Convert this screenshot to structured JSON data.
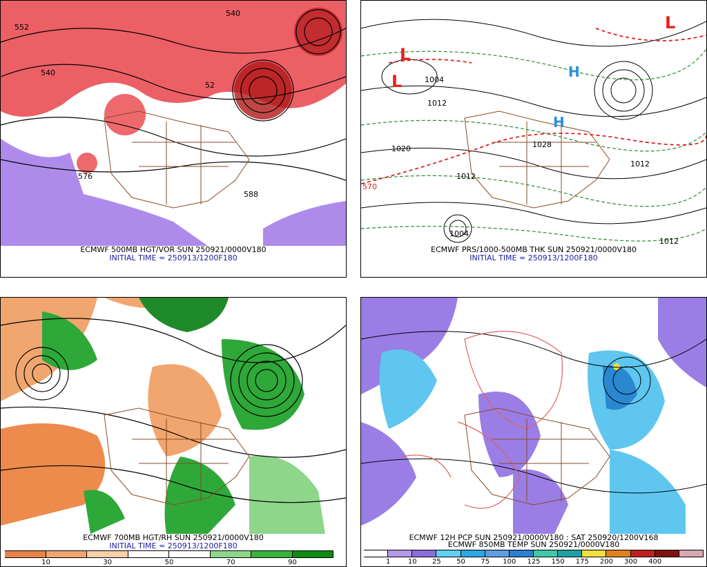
{
  "panels": {
    "top_left": {
      "title": "ECMWF 500MB HGT/VOR SUN 250921/0000V180",
      "initial": "INITIAL TIME = 250913/1200F180",
      "labels": [
        "552",
        "540",
        "540",
        "576",
        "588",
        "52"
      ]
    },
    "top_right": {
      "title": "ECMWF PRS/1000-500MB THK SUN 250921/0000V180",
      "initial": "INITIAL TIME = 250913/1200F180",
      "labels": [
        "1004",
        "1012",
        "1020",
        "1028",
        "1012",
        "1004",
        "570",
        "1012",
        "1012"
      ]
    },
    "bottom_left": {
      "title": "ECMWF 700MB HGT/RH SUN 250921/0000V180",
      "initial": "INITIAL TIME = 250913/1200F180",
      "colorbar_ticks": [
        "10",
        "30",
        "50",
        "70",
        "90"
      ],
      "colorbar_colors": [
        "#e8834a",
        "#f0a66e",
        "#f8cfa8",
        "#ffffff",
        "#ffffff",
        "#8ed68a",
        "#3ab33a",
        "#0f8a14"
      ]
    },
    "bottom_right": {
      "title": "ECMWF 12H PCP SUN 250921/0000V180 : SAT 250920/1200V168",
      "subtitle": "ECMWF 850MB TEMP SUN 250921/0000V180",
      "colorbar_ticks": [
        "1",
        "10",
        "25",
        "50",
        "75",
        "100",
        "125",
        "150",
        "175",
        "200",
        "300",
        "400"
      ],
      "colorbar_colors": [
        "#ffffff",
        "#b49ae6",
        "#8a6ee0",
        "#5fd0f0",
        "#2aa8e8",
        "#5f9fe0",
        "#2e7fd0",
        "#44c7a8",
        "#20a0a0",
        "#f0e040",
        "#e08020",
        "#c02020",
        "#801010",
        "#d8a8b0"
      ]
    }
  }
}
